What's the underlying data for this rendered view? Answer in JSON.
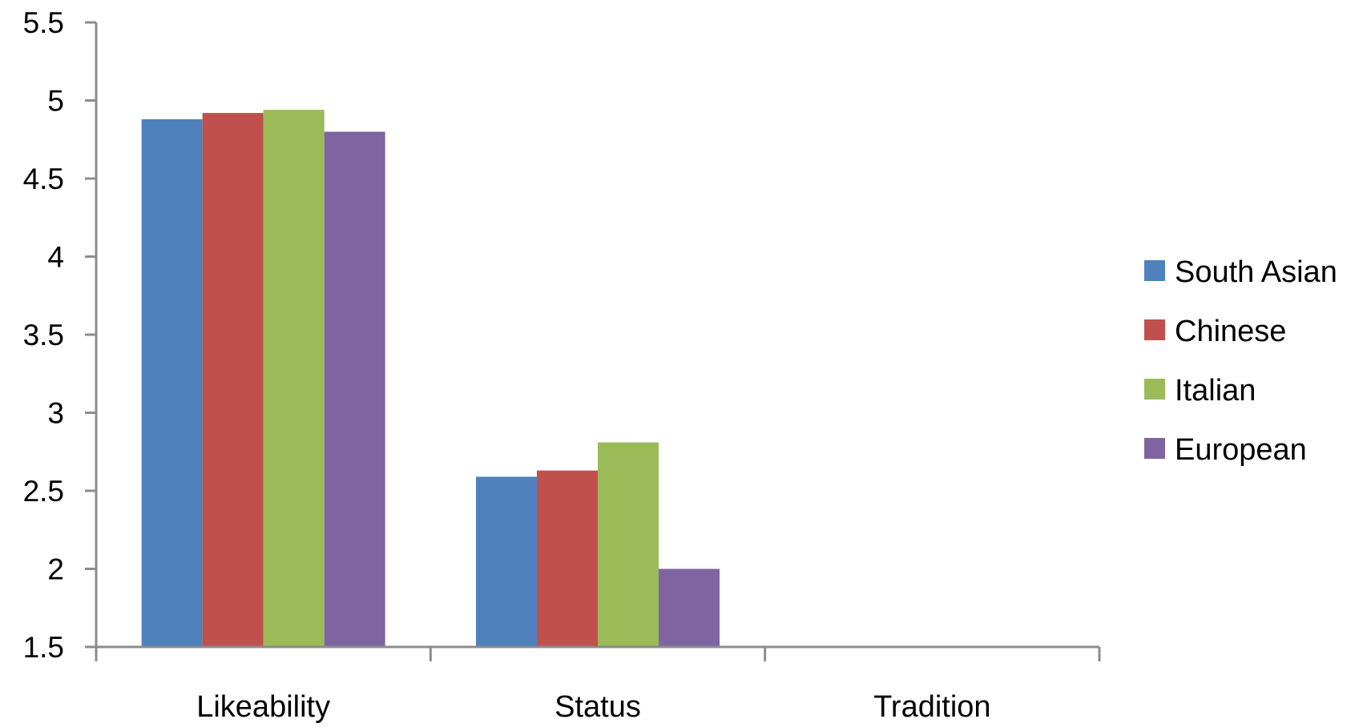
{
  "chart_data": {
    "type": "bar",
    "title": "",
    "xlabel": "",
    "ylabel": "",
    "categories": [
      "Likeability",
      "Status",
      "Tradition"
    ],
    "series": [
      {
        "name": "South Asian",
        "color": "#4F81BD",
        "values": [
          4.88,
          2.59,
          null
        ]
      },
      {
        "name": "Chinese",
        "color": "#C0504D",
        "values": [
          4.92,
          2.63,
          null
        ]
      },
      {
        "name": "Italian",
        "color": "#9BBB59",
        "values": [
          4.94,
          2.81,
          null
        ]
      },
      {
        "name": "European",
        "color": "#8064A2",
        "values": [
          4.8,
          2.0,
          null
        ]
      }
    ],
    "ylim": [
      1.5,
      5.5
    ],
    "yticks": [
      "1.5",
      "2",
      "2.5",
      "3",
      "3.5",
      "4",
      "4.5",
      "5",
      "5.5"
    ],
    "grid": false,
    "legend_position": "right",
    "axis_color": "#8C8C8C"
  }
}
